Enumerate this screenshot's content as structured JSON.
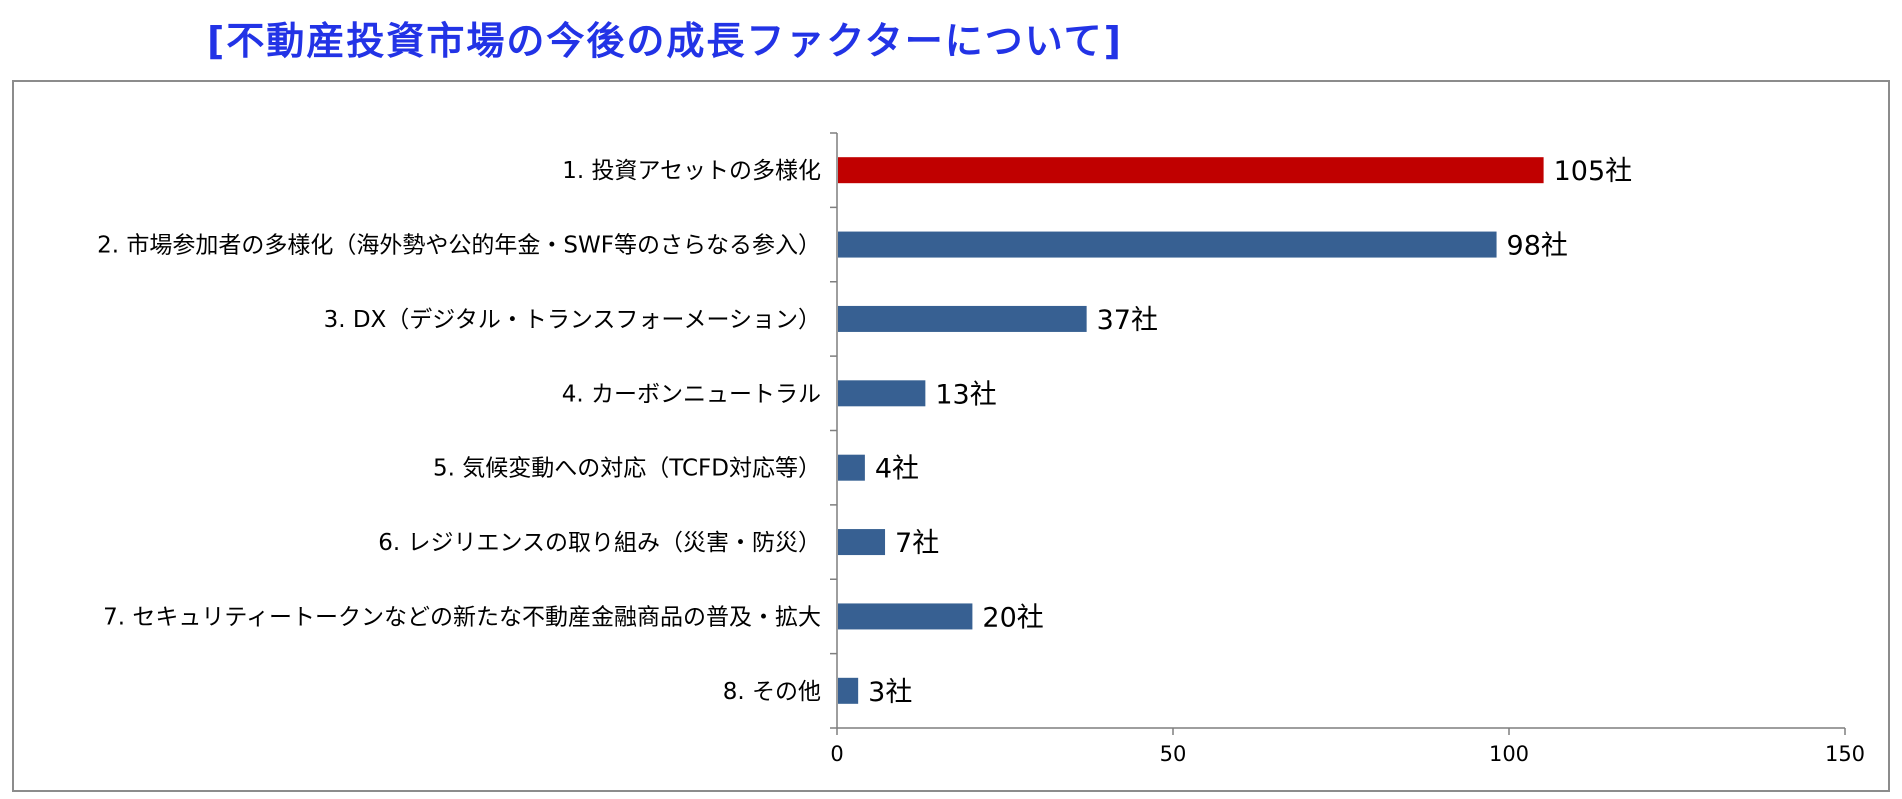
{
  "title": "[不動産投資市場の今後の成長ファクターについて]",
  "chart_data": {
    "type": "bar",
    "orientation": "horizontal",
    "categories": [
      "1. 投資アセットの多様化",
      "2. 市場参加者の多様化（海外勢や公的年金・SWF等のさらなる参入）",
      "3. DX（デジタル・トランスフォーメーション）",
      "4. カーボンニュートラル",
      "5. 気候変動への対応（TCFD対応等）",
      "6. レジリエンスの取り組み（災害・防災）",
      "7. セキュリティートークンなどの新たな不動産金融商品の普及・拡大",
      "8. その他"
    ],
    "values": [
      105,
      98,
      37,
      13,
      4,
      7,
      20,
      3
    ],
    "data_labels": [
      "105社",
      "98社",
      "37社",
      "13社",
      "4社",
      "7社",
      "20社",
      "3社"
    ],
    "bar_colors": [
      "#c00000",
      "#376092",
      "#376092",
      "#376092",
      "#376092",
      "#376092",
      "#376092",
      "#376092"
    ],
    "xlim": [
      0,
      150
    ],
    "xticks": [
      "0",
      "50",
      "100",
      "150"
    ],
    "grid": false,
    "legend": "none"
  }
}
